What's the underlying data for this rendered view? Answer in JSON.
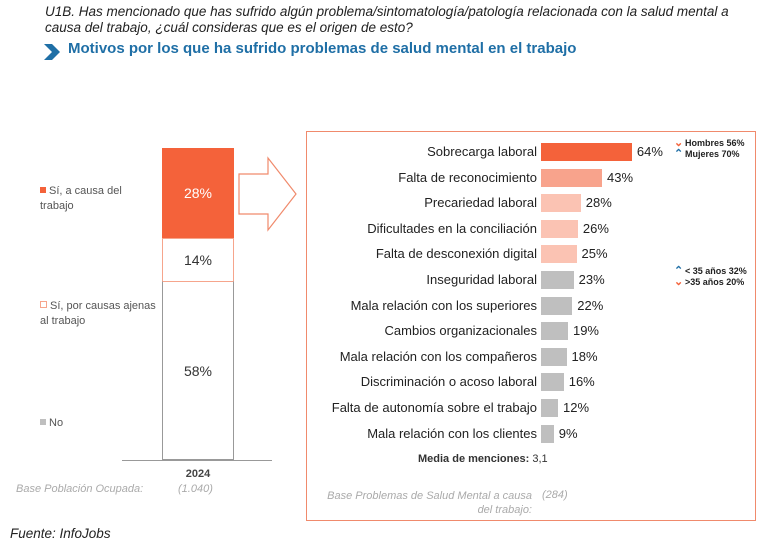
{
  "question": "U1B. Has mencionado que has sufrido algún problema/sintomatología/patología relacionada con la salud mental a causa del trabajo, ¿cuál consideras que es el origen de esto?",
  "subtitle": "Motivos por los que ha sufrido problemas de salud mental en el trabajo",
  "source": "Fuente: InfoJobs",
  "colors": {
    "accent": "#f4623a",
    "mid": "#f8a38c",
    "light": "#fbc3b3",
    "grey": "#bfbfbf",
    "blue": "#1f6fa6"
  },
  "chart_data": [
    {
      "type": "bar",
      "stacked": true,
      "categories": [
        "2024"
      ],
      "series": [
        {
          "name": "Sí, a causa del trabajo",
          "values": [
            28
          ],
          "label": "28%"
        },
        {
          "name": "Sí, por causas ajenas al trabajo",
          "values": [
            14
          ],
          "label": "14%"
        },
        {
          "name": "No",
          "values": [
            58
          ],
          "label": "58%"
        }
      ],
      "base_label": "Base Población Ocupada:",
      "base_value": "(1.040)"
    },
    {
      "type": "bar",
      "orientation": "horizontal",
      "categories": [
        "Sobrecarga laboral",
        "Falta de reconocimiento",
        "Precariedad laboral",
        "Dificultades en la conciliación",
        "Falta de desconexión digital",
        "Inseguridad laboral",
        "Mala relación con los superiores",
        "Cambios organizacionales",
        "Mala relación con los compañeros",
        "Discriminación o acoso laboral",
        "Falta de autonomía sobre el trabajo",
        "Mala relación con los clientes"
      ],
      "values": [
        64,
        43,
        28,
        26,
        25,
        23,
        22,
        19,
        18,
        16,
        12,
        9
      ],
      "labels": [
        "64%",
        "43%",
        "28%",
        "26%",
        "25%",
        "23%",
        "22%",
        "19%",
        "18%",
        "16%",
        "12%",
        "9%"
      ],
      "bar_colors": [
        "#f4623a",
        "#f8a38c",
        "#fbc3b3",
        "#fbc3b3",
        "#fbc3b3",
        "#bfbfbf",
        "#bfbfbf",
        "#bfbfbf",
        "#bfbfbf",
        "#bfbfbf",
        "#bfbfbf",
        "#bfbfbf"
      ],
      "mean_label": "Media de menciones:",
      "mean_value": "3,1",
      "annotations": [
        {
          "row": 0,
          "lines": [
            {
              "icon": "down-chevron",
              "color": "#f4623a",
              "text": "Hombres 56%"
            },
            {
              "icon": "up-chevron",
              "color": "#1f6fa6",
              "text": "Mujeres 70%"
            }
          ]
        },
        {
          "row": 5,
          "lines": [
            {
              "icon": "up-chevron",
              "color": "#1f6fa6",
              "text": "< 35 años 32%"
            },
            {
              "icon": "down-chevron",
              "color": "#f4623a",
              "text": ">35 años 20%"
            }
          ]
        }
      ],
      "base_label": "Base Problemas de Salud Mental a causa del trabajo:",
      "base_value": "(284)"
    }
  ]
}
